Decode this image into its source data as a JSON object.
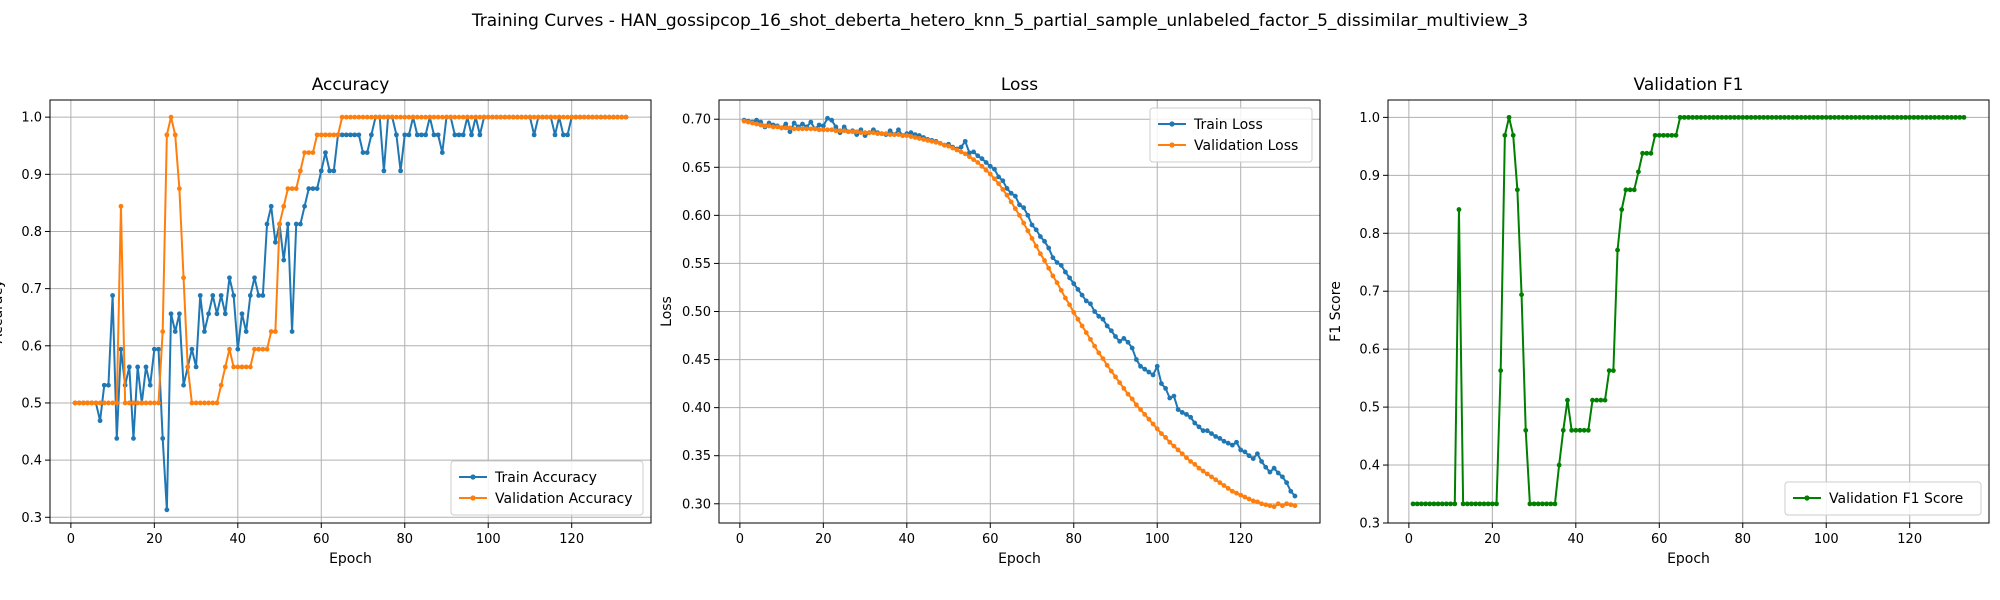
{
  "figure": {
    "suptitle": "Training Curves - HAN_gossipcop_16_shot_deberta_hetero_knn_5_partial_sample_unlabeled_factor_5_dissimilar_multiview_3"
  },
  "colors": {
    "train": "#1f77b4",
    "val": "#ff7f0e",
    "f1": "#008000",
    "grid": "#b0b0b0"
  },
  "chart_data": [
    {
      "type": "line",
      "title": "Accuracy",
      "xlabel": "Epoch",
      "ylabel": "Accuracy",
      "xlim": [
        -5,
        139
      ],
      "ylim": [
        0.29,
        1.03
      ],
      "xticks": [
        0,
        20,
        40,
        60,
        80,
        100,
        120
      ],
      "yticks": [
        0.3,
        0.4,
        0.5,
        0.6,
        0.7,
        0.8,
        0.9,
        1.0
      ],
      "ytick_labels": [
        "0.3",
        "0.4",
        "0.5",
        "0.6",
        "0.7",
        "0.8",
        "0.9",
        "1.0"
      ],
      "grid": true,
      "legend_position": "lower-right",
      "series": [
        {
          "name": "Train Accuracy",
          "color_key": "train",
          "x_start": 1,
          "values": [
            0.5,
            0.5,
            0.5,
            0.5,
            0.5,
            0.5,
            0.469,
            0.531,
            0.531,
            0.688,
            0.438,
            0.594,
            0.531,
            0.563,
            0.438,
            0.563,
            0.5,
            0.563,
            0.531,
            0.594,
            0.594,
            0.438,
            0.313,
            0.656,
            0.625,
            0.656,
            0.531,
            0.563,
            0.594,
            0.563,
            0.688,
            0.625,
            0.656,
            0.688,
            0.656,
            0.688,
            0.656,
            0.719,
            0.688,
            0.594,
            0.656,
            0.625,
            0.688,
            0.719,
            0.688,
            0.688,
            0.813,
            0.844,
            0.781,
            0.813,
            0.75,
            0.813,
            0.625,
            0.813,
            0.813,
            0.844,
            0.875,
            0.875,
            0.875,
            0.906,
            0.938,
            0.906,
            0.906,
            0.969,
            0.969,
            0.969,
            0.969,
            0.969,
            0.969,
            0.938,
            0.938,
            0.969,
            1.0,
            1.0,
            0.906,
            1.0,
            1.0,
            0.969,
            0.906,
            0.969,
            0.969,
            1.0,
            0.969,
            0.969,
            0.969,
            1.0,
            0.969,
            0.969,
            0.938,
            1.0,
            1.0,
            0.969,
            0.969,
            0.969,
            1.0,
            0.969,
            1.0,
            0.969,
            1.0,
            1.0,
            1.0,
            1.0,
            1.0,
            1.0,
            1.0,
            1.0,
            1.0,
            1.0,
            1.0,
            1.0,
            0.969,
            1.0,
            1.0,
            1.0,
            1.0,
            0.969,
            1.0,
            0.969,
            0.969,
            1.0,
            1.0,
            1.0,
            1.0,
            1.0,
            1.0,
            1.0,
            1.0,
            1.0,
            1.0,
            1.0,
            1.0,
            1.0,
            1.0
          ]
        },
        {
          "name": "Validation Accuracy",
          "color_key": "val",
          "x_start": 1,
          "values": [
            0.5,
            0.5,
            0.5,
            0.5,
            0.5,
            0.5,
            0.5,
            0.5,
            0.5,
            0.5,
            0.5,
            0.844,
            0.5,
            0.5,
            0.5,
            0.5,
            0.5,
            0.5,
            0.5,
            0.5,
            0.5,
            0.625,
            0.969,
            1.0,
            0.969,
            0.875,
            0.719,
            0.563,
            0.5,
            0.5,
            0.5,
            0.5,
            0.5,
            0.5,
            0.5,
            0.531,
            0.563,
            0.594,
            0.563,
            0.563,
            0.563,
            0.563,
            0.563,
            0.594,
            0.594,
            0.594,
            0.594,
            0.625,
            0.625,
            0.813,
            0.844,
            0.875,
            0.875,
            0.875,
            0.906,
            0.938,
            0.938,
            0.938,
            0.969,
            0.969,
            0.969,
            0.969,
            0.969,
            0.969,
            1.0,
            1.0,
            1.0,
            1.0,
            1.0,
            1.0,
            1.0,
            1.0,
            1.0,
            1.0,
            1.0,
            1.0,
            1.0,
            1.0,
            1.0,
            1.0,
            1.0,
            1.0,
            1.0,
            1.0,
            1.0,
            1.0,
            1.0,
            1.0,
            1.0,
            1.0,
            1.0,
            1.0,
            1.0,
            1.0,
            1.0,
            1.0,
            1.0,
            1.0,
            1.0,
            1.0,
            1.0,
            1.0,
            1.0,
            1.0,
            1.0,
            1.0,
            1.0,
            1.0,
            1.0,
            1.0,
            1.0,
            1.0,
            1.0,
            1.0,
            1.0,
            1.0,
            1.0,
            1.0,
            1.0,
            1.0,
            1.0,
            1.0,
            1.0,
            1.0,
            1.0,
            1.0,
            1.0,
            1.0,
            1.0,
            1.0,
            1.0,
            1.0,
            1.0
          ]
        }
      ]
    },
    {
      "type": "line",
      "title": "Loss",
      "xlabel": "Epoch",
      "ylabel": "Loss",
      "xlim": [
        -5,
        139
      ],
      "ylim": [
        0.28,
        0.72
      ],
      "xticks": [
        0,
        20,
        40,
        60,
        80,
        100,
        120
      ],
      "yticks": [
        0.3,
        0.35,
        0.4,
        0.45,
        0.5,
        0.55,
        0.6,
        0.65,
        0.7
      ],
      "ytick_labels": [
        "0.30",
        "0.35",
        "0.40",
        "0.45",
        "0.50",
        "0.55",
        "0.60",
        "0.65",
        "0.70"
      ],
      "grid": true,
      "legend_position": "top-right",
      "series": [
        {
          "name": "Train Loss",
          "color_key": "train",
          "x_start": 1,
          "values": [
            0.699,
            0.698,
            0.697,
            0.699,
            0.697,
            0.692,
            0.696,
            0.694,
            0.693,
            0.691,
            0.695,
            0.687,
            0.696,
            0.692,
            0.695,
            0.692,
            0.697,
            0.69,
            0.694,
            0.693,
            0.701,
            0.699,
            0.692,
            0.686,
            0.692,
            0.687,
            0.688,
            0.684,
            0.689,
            0.683,
            0.686,
            0.689,
            0.686,
            0.685,
            0.684,
            0.688,
            0.684,
            0.689,
            0.683,
            0.685,
            0.686,
            0.684,
            0.683,
            0.681,
            0.679,
            0.678,
            0.677,
            0.675,
            0.673,
            0.674,
            0.671,
            0.669,
            0.671,
            0.677,
            0.665,
            0.666,
            0.662,
            0.659,
            0.655,
            0.651,
            0.648,
            0.64,
            0.636,
            0.628,
            0.623,
            0.62,
            0.611,
            0.608,
            0.6,
            0.59,
            0.585,
            0.578,
            0.573,
            0.566,
            0.556,
            0.551,
            0.548,
            0.541,
            0.535,
            0.529,
            0.523,
            0.517,
            0.511,
            0.508,
            0.5,
            0.495,
            0.492,
            0.485,
            0.48,
            0.474,
            0.469,
            0.472,
            0.468,
            0.462,
            0.45,
            0.443,
            0.44,
            0.437,
            0.434,
            0.443,
            0.425,
            0.42,
            0.41,
            0.412,
            0.398,
            0.395,
            0.393,
            0.39,
            0.384,
            0.38,
            0.376,
            0.376,
            0.373,
            0.37,
            0.368,
            0.365,
            0.363,
            0.361,
            0.364,
            0.356,
            0.354,
            0.35,
            0.347,
            0.352,
            0.344,
            0.338,
            0.333,
            0.337,
            0.332,
            0.328,
            0.322,
            0.313,
            0.308
          ]
        },
        {
          "name": "Validation Loss",
          "color_key": "val",
          "x_start": 1,
          "values": [
            0.698,
            0.697,
            0.696,
            0.695,
            0.694,
            0.693,
            0.693,
            0.692,
            0.692,
            0.691,
            0.691,
            0.691,
            0.69,
            0.69,
            0.69,
            0.69,
            0.69,
            0.69,
            0.689,
            0.689,
            0.689,
            0.689,
            0.688,
            0.688,
            0.688,
            0.687,
            0.687,
            0.687,
            0.686,
            0.686,
            0.686,
            0.686,
            0.685,
            0.685,
            0.685,
            0.684,
            0.684,
            0.684,
            0.683,
            0.683,
            0.682,
            0.681,
            0.68,
            0.679,
            0.678,
            0.677,
            0.676,
            0.675,
            0.673,
            0.672,
            0.67,
            0.668,
            0.666,
            0.664,
            0.661,
            0.658,
            0.655,
            0.651,
            0.647,
            0.643,
            0.638,
            0.633,
            0.627,
            0.621,
            0.614,
            0.607,
            0.6,
            0.592,
            0.584,
            0.576,
            0.568,
            0.56,
            0.553,
            0.545,
            0.537,
            0.53,
            0.522,
            0.514,
            0.507,
            0.499,
            0.492,
            0.485,
            0.478,
            0.471,
            0.464,
            0.457,
            0.451,
            0.444,
            0.438,
            0.432,
            0.426,
            0.42,
            0.414,
            0.409,
            0.403,
            0.398,
            0.393,
            0.388,
            0.383,
            0.378,
            0.373,
            0.369,
            0.364,
            0.36,
            0.356,
            0.352,
            0.348,
            0.344,
            0.341,
            0.337,
            0.334,
            0.331,
            0.328,
            0.325,
            0.322,
            0.319,
            0.316,
            0.313,
            0.311,
            0.309,
            0.307,
            0.305,
            0.303,
            0.302,
            0.3,
            0.299,
            0.298,
            0.297,
            0.3,
            0.298,
            0.3,
            0.299,
            0.298
          ]
        }
      ]
    },
    {
      "type": "line",
      "title": "Validation F1",
      "xlabel": "Epoch",
      "ylabel": "F1 Score",
      "xlim": [
        -5,
        139
      ],
      "ylim": [
        0.3,
        1.03
      ],
      "xticks": [
        0,
        20,
        40,
        60,
        80,
        100,
        120
      ],
      "yticks": [
        0.3,
        0.4,
        0.5,
        0.6,
        0.7,
        0.8,
        0.9,
        1.0
      ],
      "ytick_labels": [
        "0.3",
        "0.4",
        "0.5",
        "0.6",
        "0.7",
        "0.8",
        "0.9",
        "1.0"
      ],
      "grid": true,
      "legend_position": "lower-right",
      "series": [
        {
          "name": "Validation F1 Score",
          "color_key": "f1",
          "x_start": 1,
          "values": [
            0.333,
            0.333,
            0.333,
            0.333,
            0.333,
            0.333,
            0.333,
            0.333,
            0.333,
            0.333,
            0.333,
            0.841,
            0.333,
            0.333,
            0.333,
            0.333,
            0.333,
            0.333,
            0.333,
            0.333,
            0.333,
            0.563,
            0.969,
            1.0,
            0.969,
            0.875,
            0.694,
            0.46,
            0.333,
            0.333,
            0.333,
            0.333,
            0.333,
            0.333,
            0.333,
            0.4,
            0.46,
            0.512,
            0.46,
            0.46,
            0.46,
            0.46,
            0.46,
            0.512,
            0.512,
            0.512,
            0.512,
            0.563,
            0.563,
            0.771,
            0.841,
            0.875,
            0.875,
            0.875,
            0.906,
            0.938,
            0.938,
            0.938,
            0.969,
            0.969,
            0.969,
            0.969,
            0.969,
            0.969,
            1.0,
            1.0,
            1.0,
            1.0,
            1.0,
            1.0,
            1.0,
            1.0,
            1.0,
            1.0,
            1.0,
            1.0,
            1.0,
            1.0,
            1.0,
            1.0,
            1.0,
            1.0,
            1.0,
            1.0,
            1.0,
            1.0,
            1.0,
            1.0,
            1.0,
            1.0,
            1.0,
            1.0,
            1.0,
            1.0,
            1.0,
            1.0,
            1.0,
            1.0,
            1.0,
            1.0,
            1.0,
            1.0,
            1.0,
            1.0,
            1.0,
            1.0,
            1.0,
            1.0,
            1.0,
            1.0,
            1.0,
            1.0,
            1.0,
            1.0,
            1.0,
            1.0,
            1.0,
            1.0,
            1.0,
            1.0,
            1.0,
            1.0,
            1.0,
            1.0,
            1.0,
            1.0,
            1.0,
            1.0,
            1.0,
            1.0,
            1.0,
            1.0,
            1.0
          ]
        }
      ]
    }
  ]
}
